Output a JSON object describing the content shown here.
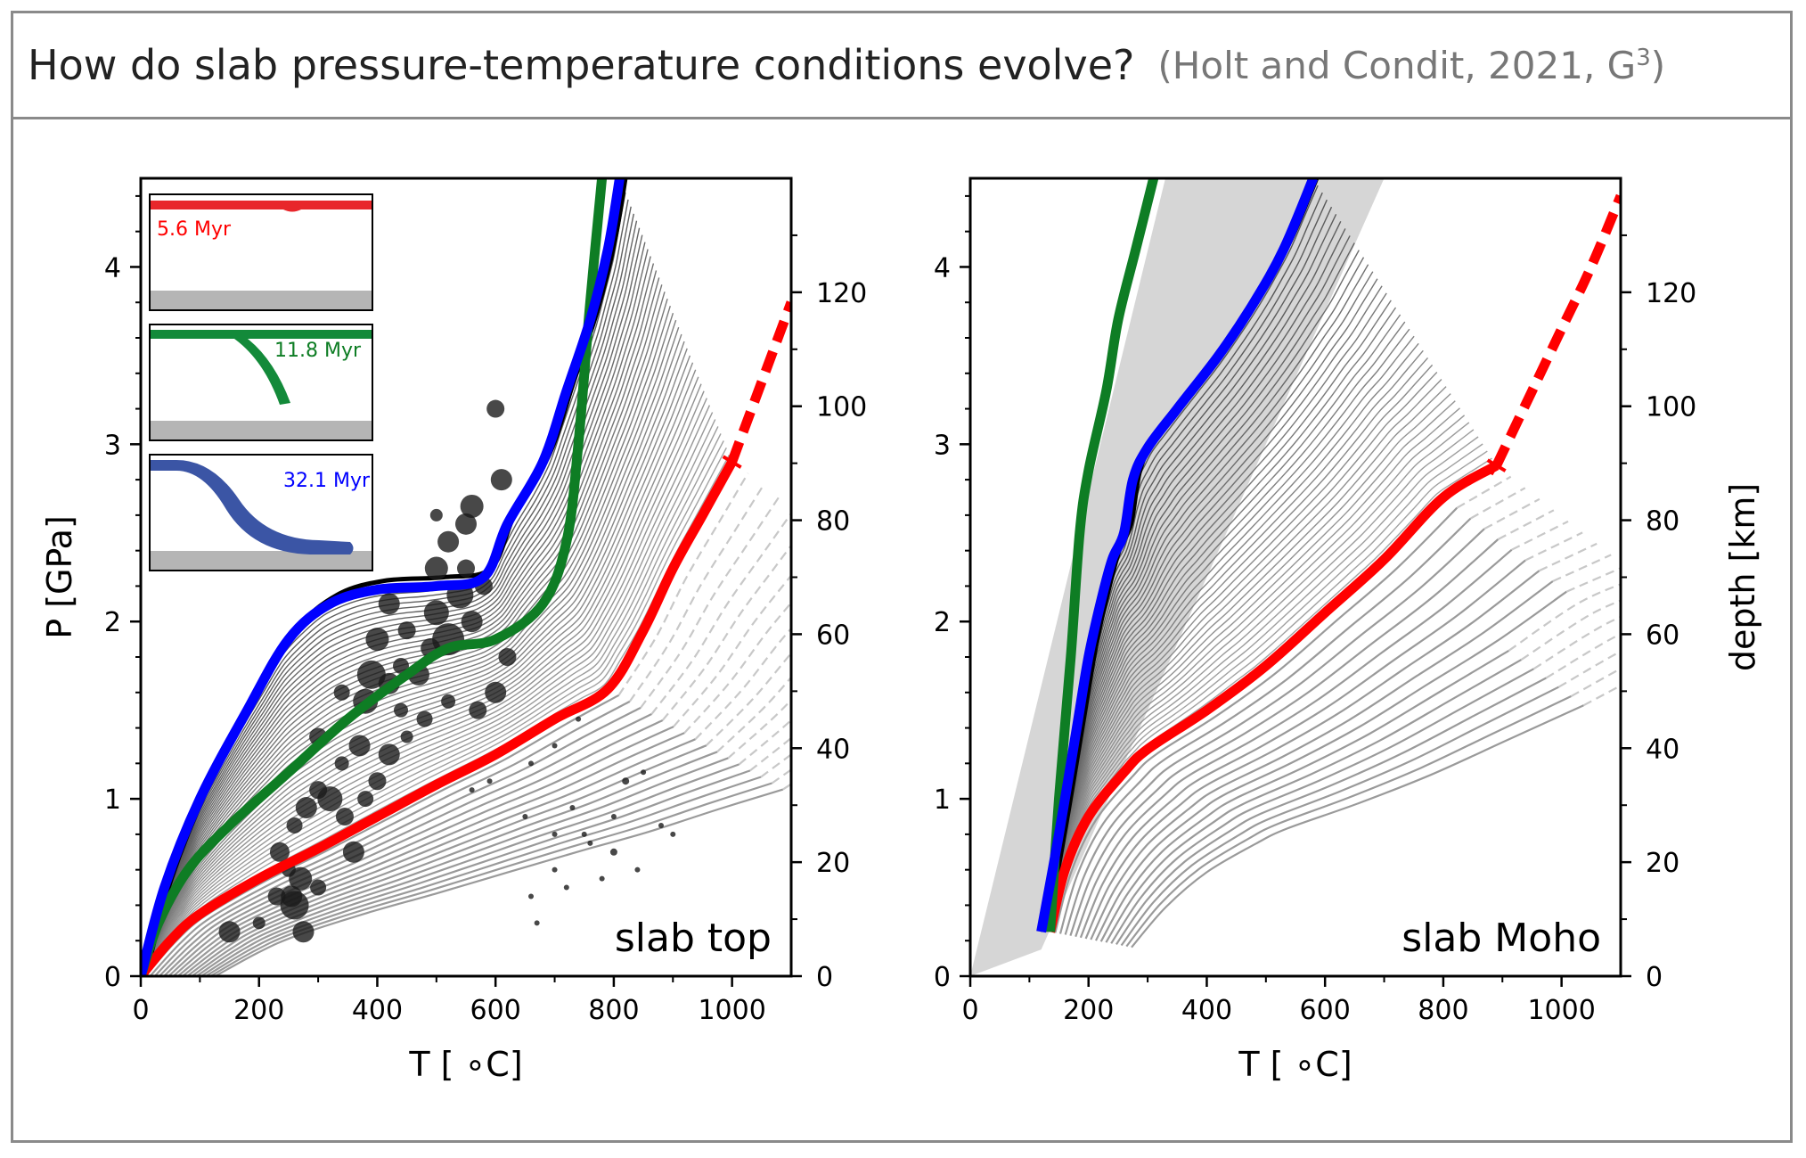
{
  "header": {
    "title": "How do slab pressure-temperature conditions evolve?",
    "citation": "(Holt and Condit, 2021, G",
    "citation_sup": "3",
    "citation_close": ")"
  },
  "colors": {
    "red": "#ff0000",
    "green": "#0e7d24",
    "blue": "#0000ff",
    "dark_family": "#2a2a2a",
    "grey_family": "#9a9a9a",
    "shade": "#d6d6d6",
    "frame": "#8a8a8a"
  },
  "chart_data": [
    {
      "type": "line",
      "panel_label": "slab top",
      "xlabel": "T [ ∘C]",
      "ylabel": "P [GPa]",
      "y2label": "depth [km]",
      "xlim": [
        0,
        1100
      ],
      "ylim": [
        0,
        4.5
      ],
      "y2lim": [
        0,
        140
      ],
      "xticks": [
        0,
        200,
        400,
        600,
        800,
        1000
      ],
      "yticks": [
        0,
        1,
        2,
        3,
        4
      ],
      "y2ticks": [
        0,
        20,
        40,
        60,
        80,
        100,
        120
      ],
      "series": [
        {
          "color": "red",
          "x": [
            0,
            50,
            100,
            200,
            300,
            400,
            500,
            600,
            700,
            790,
            850,
            900,
            950,
            1000
          ],
          "y": [
            0,
            0.2,
            0.35,
            0.55,
            0.72,
            0.9,
            1.08,
            1.25,
            1.45,
            1.62,
            1.95,
            2.3,
            2.6,
            2.9
          ],
          "dashed_x": [
            1000,
            1100
          ],
          "dashed_y": [
            2.9,
            3.8
          ]
        },
        {
          "color": "green",
          "x": [
            0,
            30,
            80,
            150,
            250,
            350,
            450,
            520,
            600,
            680,
            720,
            740,
            760,
            780
          ],
          "y": [
            0,
            0.3,
            0.6,
            0.85,
            1.15,
            1.45,
            1.7,
            1.85,
            1.9,
            2.1,
            2.45,
            3.0,
            3.8,
            4.5
          ],
          "dashed_x": [],
          "dashed_y": []
        },
        {
          "color": "blue",
          "x": [
            0,
            40,
            100,
            180,
            250,
            320,
            400,
            500,
            580,
            620,
            680,
            720,
            760,
            790,
            810
          ],
          "y": [
            0,
            0.5,
            1.0,
            1.5,
            1.9,
            2.1,
            2.18,
            2.2,
            2.25,
            2.55,
            2.9,
            3.3,
            3.7,
            4.1,
            4.5
          ],
          "dashed_x": [],
          "dashed_y": []
        }
      ],
      "earthquakes": [
        [
          150,
          0.25,
          12
        ],
        [
          200,
          0.3,
          7
        ],
        [
          230,
          0.45,
          10
        ],
        [
          255,
          0.45,
          12
        ],
        [
          260,
          0.4,
          16
        ],
        [
          270,
          0.55,
          13
        ],
        [
          275,
          0.25,
          12
        ],
        [
          300,
          0.5,
          9
        ],
        [
          235,
          0.7,
          11
        ],
        [
          250,
          0.6,
          8
        ],
        [
          260,
          0.85,
          9
        ],
        [
          280,
          0.95,
          12
        ],
        [
          300,
          1.05,
          10
        ],
        [
          320,
          1.0,
          14
        ],
        [
          345,
          0.9,
          10
        ],
        [
          360,
          0.7,
          12
        ],
        [
          380,
          1.0,
          9
        ],
        [
          400,
          1.1,
          10
        ],
        [
          420,
          1.25,
          12
        ],
        [
          300,
          1.35,
          10
        ],
        [
          340,
          1.2,
          8
        ],
        [
          370,
          1.3,
          12
        ],
        [
          380,
          1.55,
          14
        ],
        [
          390,
          1.7,
          16
        ],
        [
          420,
          1.65,
          12
        ],
        [
          440,
          1.75,
          9
        ],
        [
          400,
          1.9,
          13
        ],
        [
          420,
          2.1,
          12
        ],
        [
          450,
          1.95,
          10
        ],
        [
          470,
          1.7,
          12
        ],
        [
          490,
          1.85,
          11
        ],
        [
          500,
          2.05,
          14
        ],
        [
          520,
          1.9,
          18
        ],
        [
          540,
          2.15,
          15
        ],
        [
          560,
          2.0,
          12
        ],
        [
          580,
          2.2,
          10
        ],
        [
          600,
          1.6,
          12
        ],
        [
          620,
          1.8,
          10
        ],
        [
          500,
          2.3,
          13
        ],
        [
          520,
          2.45,
          12
        ],
        [
          550,
          2.55,
          12
        ],
        [
          560,
          2.65,
          13
        ],
        [
          610,
          2.8,
          12
        ],
        [
          600,
          3.2,
          10
        ],
        [
          570,
          1.5,
          10
        ],
        [
          520,
          1.55,
          8
        ],
        [
          480,
          1.45,
          9
        ],
        [
          450,
          1.35,
          7
        ],
        [
          550,
          2.3,
          10
        ],
        [
          500,
          2.6,
          7
        ],
        [
          440,
          1.5,
          8
        ],
        [
          340,
          1.6,
          9
        ],
        [
          660,
          0.45,
          3
        ],
        [
          700,
          0.6,
          3
        ],
        [
          720,
          0.5,
          3
        ],
        [
          750,
          0.8,
          3
        ],
        [
          780,
          0.55,
          3
        ],
        [
          800,
          0.7,
          4
        ],
        [
          820,
          1.1,
          4
        ],
        [
          850,
          1.15,
          3
        ],
        [
          880,
          0.85,
          3
        ],
        [
          900,
          0.8,
          3
        ],
        [
          670,
          0.3,
          3
        ],
        [
          700,
          0.8,
          3
        ],
        [
          730,
          0.95,
          3
        ],
        [
          760,
          0.75,
          3
        ],
        [
          800,
          0.9,
          3
        ],
        [
          840,
          0.6,
          3
        ],
        [
          650,
          0.9,
          3
        ],
        [
          700,
          1.3,
          3
        ],
        [
          740,
          1.45,
          3
        ],
        [
          660,
          1.2,
          3
        ],
        [
          560,
          1.05,
          3
        ],
        [
          590,
          1.1,
          3
        ]
      ],
      "insets": [
        {
          "label": "5.6 Myr",
          "color": "red"
        },
        {
          "label": "11.8 Myr",
          "color": "green"
        },
        {
          "label": "32.1 Myr",
          "color": "blue"
        }
      ]
    },
    {
      "type": "line",
      "panel_label": "slab Moho",
      "xlabel": "T [ ∘C]",
      "ylabel": "",
      "y2label": "depth [km]",
      "xlim": [
        0,
        1100
      ],
      "ylim": [
        0,
        4.5
      ],
      "y2lim": [
        0,
        140
      ],
      "xticks": [
        0,
        200,
        400,
        600,
        800,
        1000
      ],
      "yticks": [
        0,
        1,
        2,
        3,
        4
      ],
      "y2ticks": [
        0,
        20,
        40,
        60,
        80,
        100,
        120
      ],
      "shaded_region": {
        "x": [
          0,
          120,
          700,
          330
        ],
        "y": [
          0,
          0.15,
          4.5,
          4.5
        ]
      },
      "series": [
        {
          "color": "red",
          "x": [
            135,
            160,
            200,
            260,
            300,
            400,
            500,
            600,
            700,
            800,
            890
          ],
          "y": [
            0.25,
            0.6,
            0.9,
            1.15,
            1.28,
            1.5,
            1.75,
            2.05,
            2.35,
            2.7,
            2.88
          ],
          "dashed_x": [
            890,
            950,
            1000,
            1050,
            1100
          ],
          "dashed_y": [
            2.88,
            3.3,
            3.65,
            4.0,
            4.4
          ]
        },
        {
          "color": "green",
          "x": [
            135,
            150,
            170,
            185,
            200,
            230,
            250,
            280,
            310
          ],
          "y": [
            0.25,
            1.0,
            1.8,
            2.5,
            2.85,
            3.3,
            3.7,
            4.1,
            4.5
          ]
        },
        {
          "color": "blue",
          "x": [
            120,
            150,
            180,
            200,
            220,
            240,
            260,
            275,
            300,
            350,
            420,
            480,
            530,
            580
          ],
          "y": [
            0.25,
            0.8,
            1.4,
            1.8,
            2.1,
            2.35,
            2.5,
            2.8,
            2.98,
            3.2,
            3.5,
            3.8,
            4.1,
            4.5
          ]
        }
      ]
    }
  ]
}
